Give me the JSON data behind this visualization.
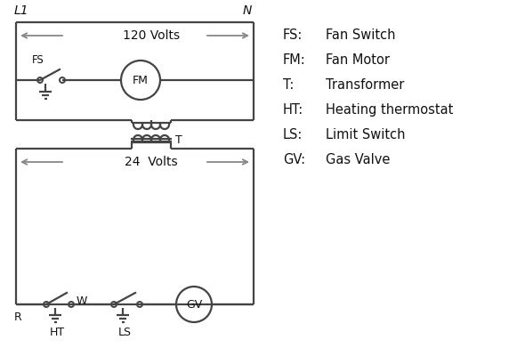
{
  "bg_color": "#ffffff",
  "line_color": "#444444",
  "text_color": "#111111",
  "arrow_color": "#888888",
  "volts_120": "120 Volts",
  "volts_24": "24  Volts",
  "L1_label": "L1",
  "N_label": "N",
  "legend_items": [
    [
      "FS:",
      "Fan Switch"
    ],
    [
      "FM:",
      "Fan Motor"
    ],
    [
      "T:",
      "Transformer"
    ],
    [
      "HT:",
      "Heating thermostat"
    ],
    [
      "LS:",
      "Limit Switch"
    ],
    [
      "GV:",
      "Gas Valve"
    ]
  ]
}
